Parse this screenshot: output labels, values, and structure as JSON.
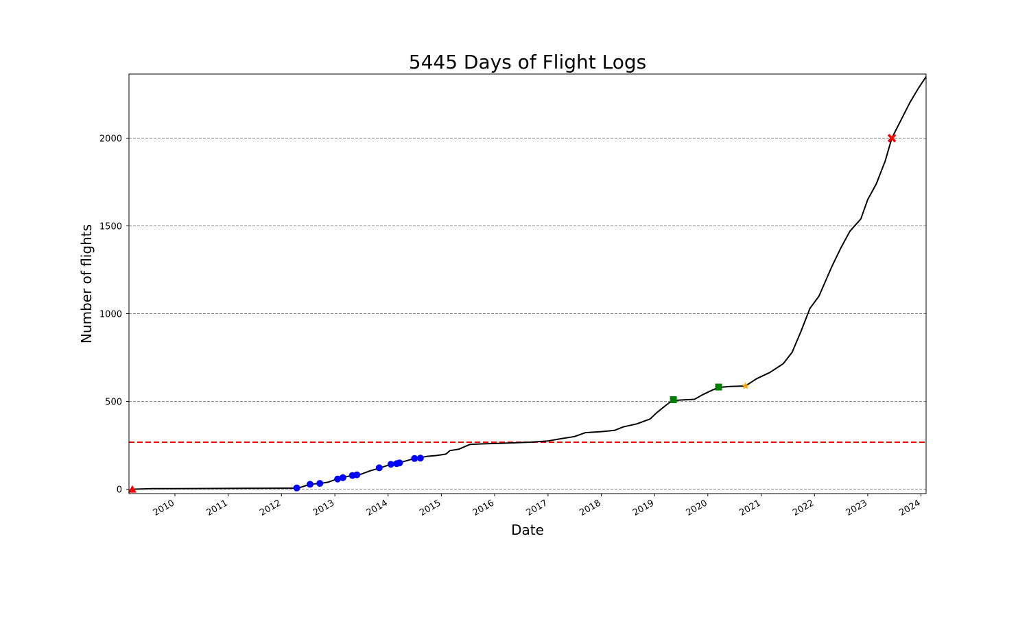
{
  "chart_data": {
    "type": "line",
    "title": "5445 Days of Flight Logs",
    "xlabel": "Date",
    "ylabel": "Number of flights",
    "xlim": [
      "2009-02-20",
      "2024-02-05"
    ],
    "ylim": [
      -25,
      2365
    ],
    "x_ticks": [
      {
        "date": "2010-01-01",
        "label": "2010"
      },
      {
        "date": "2011-01-01",
        "label": "2011"
      },
      {
        "date": "2012-01-01",
        "label": "2012"
      },
      {
        "date": "2013-01-01",
        "label": "2013"
      },
      {
        "date": "2014-01-01",
        "label": "2014"
      },
      {
        "date": "2015-01-01",
        "label": "2015"
      },
      {
        "date": "2016-01-01",
        "label": "2016"
      },
      {
        "date": "2017-01-01",
        "label": "2017"
      },
      {
        "date": "2018-01-01",
        "label": "2018"
      },
      {
        "date": "2019-01-01",
        "label": "2019"
      },
      {
        "date": "2020-01-01",
        "label": "2020"
      },
      {
        "date": "2021-01-01",
        "label": "2021"
      },
      {
        "date": "2022-01-01",
        "label": "2022"
      },
      {
        "date": "2023-01-01",
        "label": "2023"
      },
      {
        "date": "2024-01-01",
        "label": "2024"
      }
    ],
    "y_ticks": [
      0,
      500,
      1000,
      1500,
      2000
    ],
    "grid": "horizontal dashed gray",
    "reference_line": {
      "y": 268,
      "color": "#ff0000",
      "style": "dashed"
    },
    "series": [
      {
        "type": "line",
        "color": "#000000",
        "points": [
          [
            "2009-03-15",
            0
          ],
          [
            "2009-08-01",
            3
          ],
          [
            "2010-06-01",
            4
          ],
          [
            "2011-06-01",
            5
          ],
          [
            "2012-02-01",
            6
          ],
          [
            "2012-04-01",
            6
          ],
          [
            "2012-05-01",
            8
          ],
          [
            "2012-07-15",
            28
          ],
          [
            "2012-10-01",
            34
          ],
          [
            "2012-11-15",
            40
          ],
          [
            "2013-01-15",
            58
          ],
          [
            "2013-03-01",
            68
          ],
          [
            "2013-05-01",
            78
          ],
          [
            "2013-07-01",
            86
          ],
          [
            "2013-09-01",
            105
          ],
          [
            "2013-11-01",
            120
          ],
          [
            "2014-01-15",
            140
          ],
          [
            "2014-03-15",
            150
          ],
          [
            "2014-07-01",
            175
          ],
          [
            "2014-10-01",
            188
          ],
          [
            "2014-12-01",
            192
          ],
          [
            "2015-02-01",
            200
          ],
          [
            "2015-03-01",
            220
          ],
          [
            "2015-05-01",
            228
          ],
          [
            "2015-07-15",
            255
          ],
          [
            "2015-10-01",
            258
          ],
          [
            "2016-03-01",
            262
          ],
          [
            "2016-09-01",
            268
          ],
          [
            "2017-01-01",
            275
          ],
          [
            "2017-04-01",
            288
          ],
          [
            "2017-07-01",
            300
          ],
          [
            "2017-09-15",
            322
          ],
          [
            "2018-01-01",
            328
          ],
          [
            "2018-04-01",
            335
          ],
          [
            "2018-06-01",
            355
          ],
          [
            "2018-09-01",
            372
          ],
          [
            "2018-12-01",
            400
          ],
          [
            "2019-01-15",
            435
          ],
          [
            "2019-03-15",
            475
          ],
          [
            "2019-05-01",
            505
          ],
          [
            "2019-07-01",
            508
          ],
          [
            "2019-10-01",
            512
          ],
          [
            "2019-12-01",
            540
          ],
          [
            "2020-01-15",
            558
          ],
          [
            "2020-03-15",
            580
          ],
          [
            "2020-06-01",
            585
          ],
          [
            "2020-09-15",
            588
          ],
          [
            "2020-12-01",
            630
          ],
          [
            "2021-03-01",
            665
          ],
          [
            "2021-06-01",
            715
          ],
          [
            "2021-08-01",
            780
          ],
          [
            "2021-10-01",
            900
          ],
          [
            "2021-12-01",
            1030
          ],
          [
            "2022-02-01",
            1100
          ],
          [
            "2022-05-01",
            1270
          ],
          [
            "2022-07-01",
            1375
          ],
          [
            "2022-09-01",
            1470
          ],
          [
            "2022-11-15",
            1540
          ],
          [
            "2023-01-01",
            1650
          ],
          [
            "2023-03-01",
            1740
          ],
          [
            "2023-05-01",
            1870
          ],
          [
            "2023-06-15",
            2000
          ],
          [
            "2023-08-15",
            2100
          ],
          [
            "2023-10-15",
            2200
          ],
          [
            "2023-12-15",
            2285
          ],
          [
            "2024-02-05",
            2350
          ]
        ]
      },
      {
        "type": "markers",
        "marker": "triangle",
        "color": "#ff0000",
        "points": [
          [
            "2009-03-15",
            0
          ]
        ]
      },
      {
        "type": "markers",
        "marker": "circle",
        "color": "#0000ff",
        "points": [
          [
            "2012-04-15",
            7
          ],
          [
            "2012-07-15",
            28
          ],
          [
            "2012-09-20",
            33
          ],
          [
            "2013-01-20",
            58
          ],
          [
            "2013-02-25",
            66
          ],
          [
            "2013-05-01",
            78
          ],
          [
            "2013-06-01",
            82
          ],
          [
            "2013-11-01",
            122
          ],
          [
            "2014-01-20",
            142
          ],
          [
            "2014-03-01",
            146
          ],
          [
            "2014-03-20",
            150
          ],
          [
            "2014-07-01",
            175
          ],
          [
            "2014-08-10",
            177
          ]
        ]
      },
      {
        "type": "markers",
        "marker": "square",
        "color": "#008000",
        "points": [
          [
            "2019-05-10",
            510
          ],
          [
            "2020-03-15",
            582
          ]
        ]
      },
      {
        "type": "markers",
        "marker": "star",
        "color": "#ffa500",
        "points": [
          [
            "2020-09-15",
            588
          ]
        ]
      },
      {
        "type": "markers",
        "marker": "x",
        "color": "#ff0000",
        "points": [
          [
            "2023-06-15",
            2000
          ]
        ]
      }
    ]
  }
}
